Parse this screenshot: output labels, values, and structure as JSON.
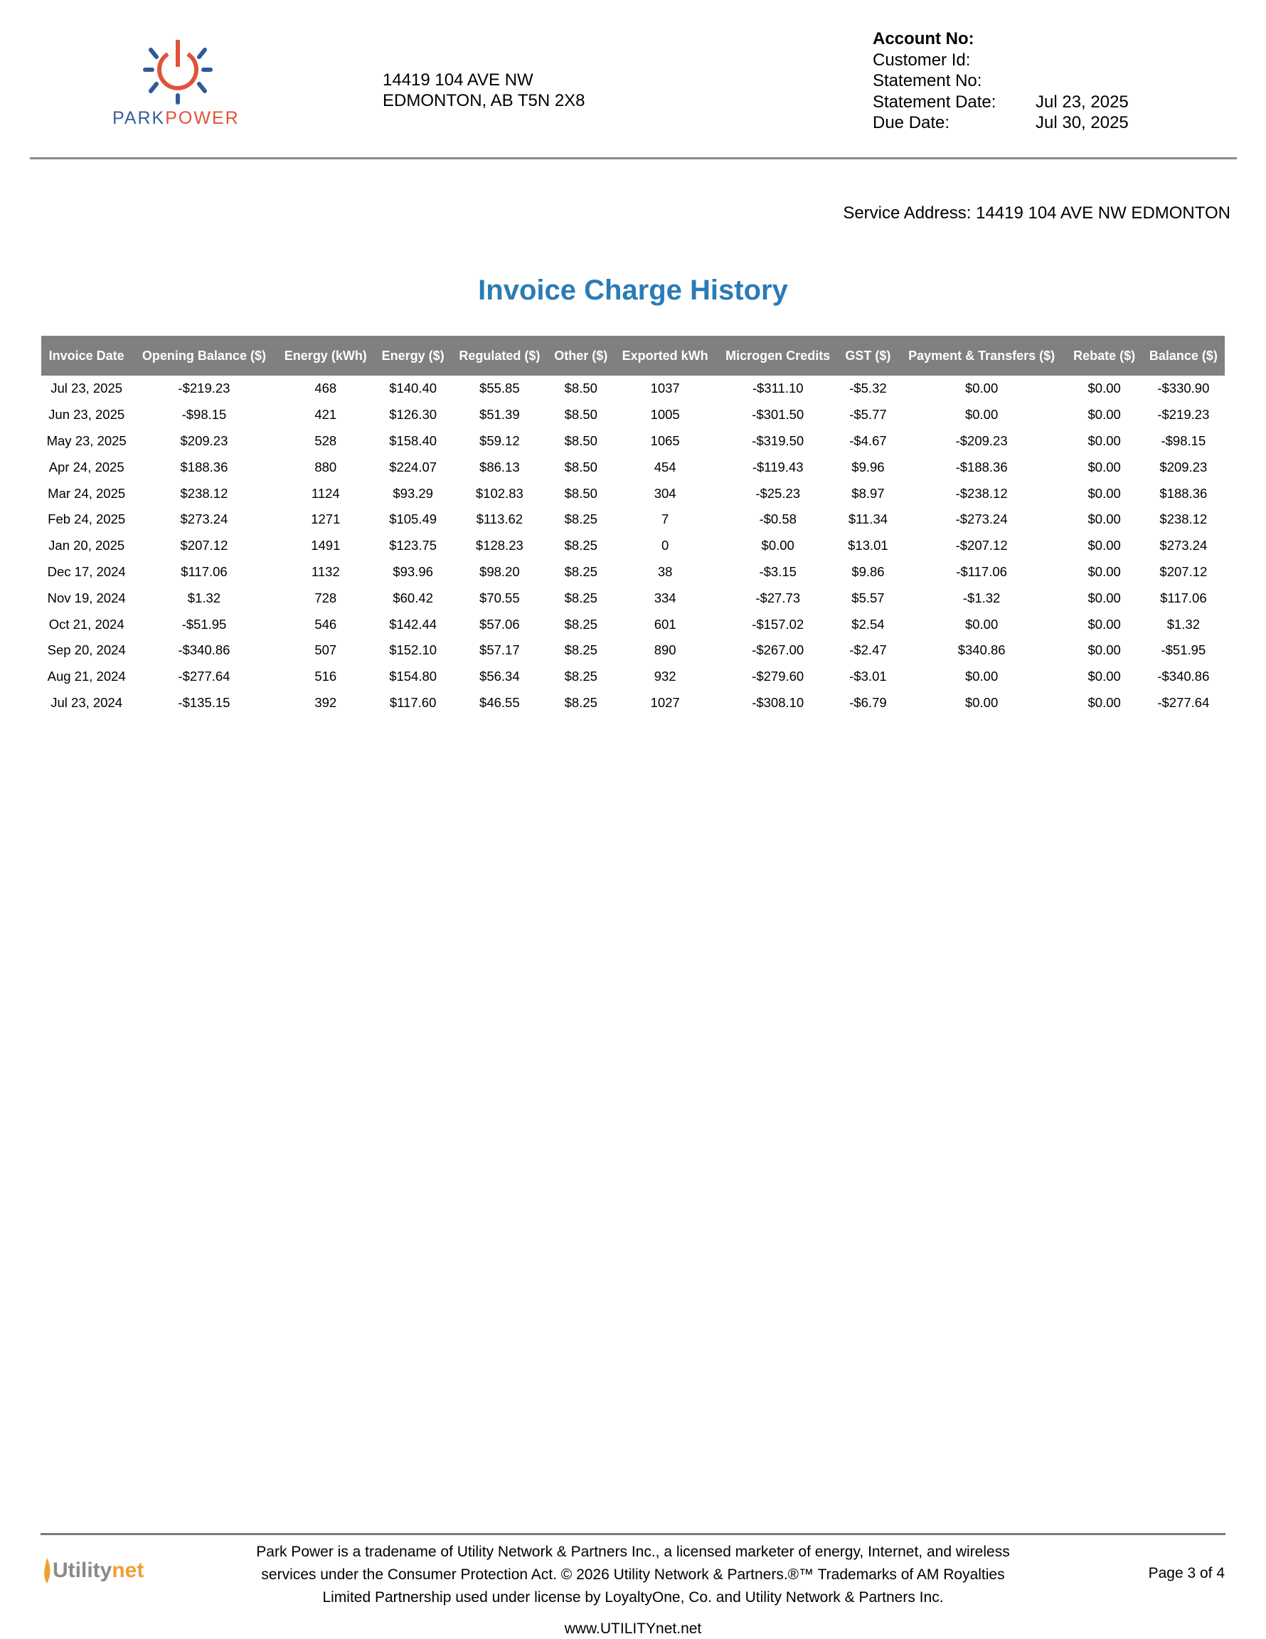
{
  "brand": {
    "name_part1": "PARK",
    "name_part2": "POWER",
    "colors": {
      "blue": "#3a5f9a",
      "orange": "#e0533a"
    }
  },
  "mailing_address": {
    "line1": "14419 104 AVE NW",
    "line2": "EDMONTON, AB T5N 2X8"
  },
  "account": {
    "account_no_label": "Account No:",
    "customer_id_label": "Customer Id:",
    "statement_no_label": "Statement No:",
    "statement_date_label": "Statement Date:",
    "statement_date": "Jul 23, 2025",
    "due_date_label": "Due Date:",
    "due_date": "Jul 30, 2025"
  },
  "service_address": "Service Address: 14419 104 AVE NW EDMONTON",
  "title": "Invoice Charge History",
  "table": {
    "headers": [
      "Invoice Date",
      "Opening Balance ($)",
      "Energy (kWh)",
      "Energy ($)",
      "Regulated ($)",
      "Other ($)",
      "Exported kWh",
      "Microgen Credits",
      "GST ($)",
      "Payment & Transfers ($)",
      "Rebate ($)",
      "Balance ($)"
    ],
    "rows": [
      [
        "Jul 23, 2025",
        "-$219.23",
        "468",
        "$140.40",
        "$55.85",
        "$8.50",
        "1037",
        "-$311.10",
        "-$5.32",
        "$0.00",
        "$0.00",
        "-$330.90"
      ],
      [
        "Jun 23, 2025",
        "-$98.15",
        "421",
        "$126.30",
        "$51.39",
        "$8.50",
        "1005",
        "-$301.50",
        "-$5.77",
        "$0.00",
        "$0.00",
        "-$219.23"
      ],
      [
        "May 23, 2025",
        "$209.23",
        "528",
        "$158.40",
        "$59.12",
        "$8.50",
        "1065",
        "-$319.50",
        "-$4.67",
        "-$209.23",
        "$0.00",
        "-$98.15"
      ],
      [
        "Apr 24, 2025",
        "$188.36",
        "880",
        "$224.07",
        "$86.13",
        "$8.50",
        "454",
        "-$119.43",
        "$9.96",
        "-$188.36",
        "$0.00",
        "$209.23"
      ],
      [
        "Mar 24, 2025",
        "$238.12",
        "1124",
        "$93.29",
        "$102.83",
        "$8.50",
        "304",
        "-$25.23",
        "$8.97",
        "-$238.12",
        "$0.00",
        "$188.36"
      ],
      [
        "Feb 24, 2025",
        "$273.24",
        "1271",
        "$105.49",
        "$113.62",
        "$8.25",
        "7",
        "-$0.58",
        "$11.34",
        "-$273.24",
        "$0.00",
        "$238.12"
      ],
      [
        "Jan 20, 2025",
        "$207.12",
        "1491",
        "$123.75",
        "$128.23",
        "$8.25",
        "0",
        "$0.00",
        "$13.01",
        "-$207.12",
        "$0.00",
        "$273.24"
      ],
      [
        "Dec 17, 2024",
        "$117.06",
        "1132",
        "$93.96",
        "$98.20",
        "$8.25",
        "38",
        "-$3.15",
        "$9.86",
        "-$117.06",
        "$0.00",
        "$207.12"
      ],
      [
        "Nov 19, 2024",
        "$1.32",
        "728",
        "$60.42",
        "$70.55",
        "$8.25",
        "334",
        "-$27.73",
        "$5.57",
        "-$1.32",
        "$0.00",
        "$117.06"
      ],
      [
        "Oct 21, 2024",
        "-$51.95",
        "546",
        "$142.44",
        "$57.06",
        "$8.25",
        "601",
        "-$157.02",
        "$2.54",
        "$0.00",
        "$0.00",
        "$1.32"
      ],
      [
        "Sep 20, 2024",
        "-$340.86",
        "507",
        "$152.10",
        "$57.17",
        "$8.25",
        "890",
        "-$267.00",
        "-$2.47",
        "$340.86",
        "$0.00",
        "-$51.95"
      ],
      [
        "Aug 21, 2024",
        "-$277.64",
        "516",
        "$154.80",
        "$56.34",
        "$8.25",
        "932",
        "-$279.60",
        "-$3.01",
        "$0.00",
        "$0.00",
        "-$340.86"
      ],
      [
        "Jul 23, 2024",
        "-$135.15",
        "392",
        "$117.60",
        "$46.55",
        "$8.25",
        "1027",
        "-$308.10",
        "-$6.79",
        "$0.00",
        "$0.00",
        "-$277.64"
      ]
    ]
  },
  "footer": {
    "logo_part1": "Utility",
    "logo_part2": "net",
    "line1": "Park Power is a tradename of Utility Network & Partners Inc., a licensed marketer of energy, Internet, and wireless",
    "line2": "services under the Consumer Protection Act. © 2026 Utility Network & Partners.®™ Trademarks of AM Royalties",
    "line3": "Limited Partnership used under license by LoyaltyOne, Co. and Utility Network & Partners Inc.",
    "page": "Page 3 of 4",
    "url": "www.UTILITYnet.net"
  },
  "colors": {
    "title": "#2b7bb5",
    "table_header_bg": "#808080"
  }
}
